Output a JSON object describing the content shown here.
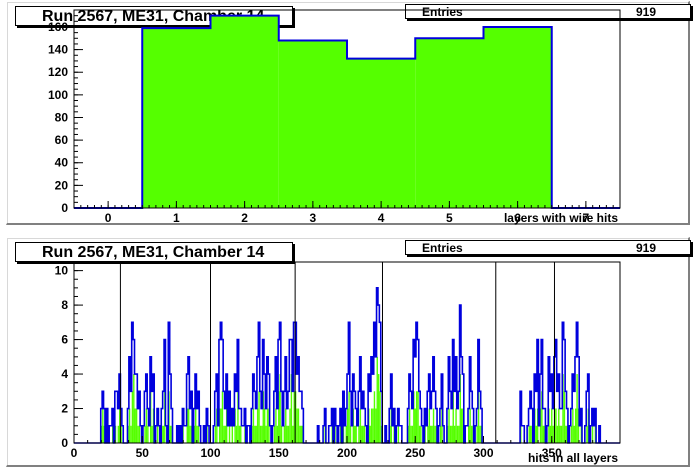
{
  "colors": {
    "fill": "#55ff00",
    "line": "#0000dd",
    "frame": "#000000"
  },
  "chart_data": [
    {
      "type": "bar",
      "title": "Run 2567, ME31, Chamber 14",
      "stats": {
        "label": "Entries",
        "value": "919"
      },
      "xlabel": "layers with wire hits",
      "ylabel": "",
      "xlim": [
        -0.5,
        7.5
      ],
      "ylim": [
        0,
        175
      ],
      "xticks": [
        0,
        1,
        2,
        3,
        4,
        5,
        6,
        7
      ],
      "yticks": [
        0,
        20,
        40,
        60,
        80,
        100,
        120,
        140,
        160
      ],
      "categories": [
        "0",
        "1",
        "2",
        "3",
        "4",
        "5",
        "6",
        "7"
      ],
      "values": [
        0,
        159,
        170,
        148,
        132,
        150,
        160,
        0
      ]
    },
    {
      "type": "bar",
      "title": "Run 2567, ME31, Chamber 14",
      "stats": {
        "label": "Entries",
        "value": "919"
      },
      "xlabel": "hits in all layers",
      "ylabel": "",
      "xlim": [
        0,
        400
      ],
      "ylim": [
        0,
        10.5
      ],
      "xticks": [
        0,
        50,
        100,
        150,
        200,
        250,
        300,
        350
      ],
      "yticks": [
        0,
        2,
        4,
        6,
        8,
        10
      ],
      "vlines": [
        34,
        100,
        162,
        226,
        309,
        352
      ],
      "green_values": [
        0,
        0,
        0,
        0,
        0,
        0,
        0,
        0,
        0,
        0,
        0,
        0,
        0,
        0,
        0,
        0,
        0,
        0,
        0,
        1,
        2,
        1,
        0,
        1,
        0,
        0,
        0,
        1,
        0,
        1,
        0,
        1,
        2,
        1,
        0,
        0,
        0,
        0,
        1,
        2,
        1,
        3,
        4,
        2,
        2,
        1,
        1,
        0,
        0,
        0,
        1,
        2,
        1,
        0,
        3,
        1,
        2,
        0,
        0,
        1,
        0,
        0,
        1,
        1,
        3,
        0,
        0,
        3,
        1,
        1,
        0,
        0,
        0,
        0,
        0,
        0,
        0,
        1,
        0,
        0,
        2,
        2,
        1,
        1,
        0,
        1,
        2,
        1,
        1,
        0,
        0,
        0,
        0,
        0,
        1,
        0,
        0,
        0,
        0,
        0,
        1,
        2,
        0,
        2,
        2,
        3,
        1,
        1,
        2,
        0,
        1,
        0,
        1,
        0,
        2,
        1,
        3,
        1,
        1,
        0,
        0,
        1,
        0,
        0,
        0,
        0,
        1,
        2,
        1,
        1,
        2,
        3,
        1,
        1,
        3,
        2,
        1,
        2,
        2,
        0,
        0,
        0,
        1,
        2,
        1,
        3,
        4,
        1,
        0,
        1,
        2,
        1,
        1,
        2,
        4,
        1,
        3,
        3,
        2,
        2,
        1,
        1,
        1,
        0,
        0,
        0,
        0,
        0,
        0,
        0,
        0,
        0,
        0,
        0,
        0,
        0,
        0,
        0,
        1,
        0,
        0,
        0,
        0,
        1,
        0,
        1,
        0,
        0,
        0,
        1,
        0,
        1,
        0,
        1,
        2,
        3,
        1,
        0,
        2,
        1,
        1,
        0,
        1,
        2,
        1,
        1,
        1,
        0,
        0,
        2,
        1,
        2,
        2,
        3,
        2,
        5,
        4,
        3,
        1,
        0,
        0,
        0,
        0,
        0,
        1,
        2,
        0,
        1,
        0,
        0,
        1,
        0,
        0,
        0,
        0,
        0,
        0,
        1,
        2,
        1,
        1,
        3,
        2,
        3,
        3,
        1,
        1,
        0,
        0,
        1,
        0,
        1,
        2,
        1,
        1,
        2,
        1,
        1,
        0,
        0,
        1,
        2,
        0,
        0,
        0,
        1,
        2,
        1,
        1,
        3,
        1,
        2,
        1,
        1,
        4,
        2,
        2,
        0,
        0,
        0,
        1,
        2,
        1,
        1,
        0,
        0,
        1,
        3,
        1,
        1,
        0,
        0,
        0,
        0,
        0,
        0,
        0,
        0,
        0,
        0,
        0,
        0,
        0,
        0,
        0,
        0,
        0,
        0,
        0,
        0,
        0,
        0,
        0,
        0,
        0,
        0,
        0,
        1,
        0,
        0,
        0,
        0,
        0,
        1,
        1,
        1,
        0,
        2,
        1,
        2,
        0,
        2,
        3,
        1,
        1,
        0,
        0,
        2,
        1,
        2,
        1,
        2,
        2,
        1,
        2,
        1,
        1,
        4,
        3,
        1,
        1,
        0,
        0,
        1,
        2,
        1,
        2,
        4,
        2,
        0,
        1,
        0,
        0,
        0,
        1,
        2,
        0,
        0,
        1,
        0,
        1,
        0,
        0,
        0,
        0,
        0,
        0,
        0,
        0,
        0,
        0,
        0,
        0,
        0,
        0,
        0,
        0,
        0
      ],
      "blue_values": [
        0,
        0,
        0,
        0,
        0,
        0,
        0,
        0,
        0,
        0,
        0,
        0,
        0,
        0,
        0,
        0,
        0,
        0,
        0,
        2,
        3,
        2,
        0,
        2,
        0,
        1,
        1,
        2,
        0,
        3,
        3,
        2,
        4,
        2,
        1,
        0,
        0,
        0,
        2,
        5,
        3,
        7,
        6,
        4,
        4,
        2,
        3,
        1,
        0,
        1,
        3,
        4,
        2,
        1,
        5,
        3,
        4,
        0,
        1,
        2,
        1,
        0,
        2,
        3,
        6,
        1,
        0,
        7,
        4,
        2,
        0,
        0,
        0,
        1,
        0,
        1,
        0,
        2,
        1,
        1,
        4,
        5,
        2,
        3,
        0,
        2,
        4,
        2,
        3,
        1,
        0,
        0,
        1,
        0,
        2,
        1,
        0,
        0,
        0,
        1,
        3,
        4,
        1,
        6,
        7,
        6,
        3,
        2,
        4,
        1,
        3,
        1,
        2,
        1,
        4,
        3,
        6,
        2,
        2,
        1,
        1,
        2,
        0,
        1,
        1,
        0,
        2,
        4,
        3,
        2,
        5,
        7,
        3,
        2,
        6,
        4,
        2,
        5,
        4,
        1,
        0,
        1,
        3,
        5,
        2,
        6,
        7,
        3,
        1,
        3,
        5,
        2,
        3,
        6,
        6,
        3,
        7,
        7,
        4,
        5,
        3,
        3,
        2,
        0,
        0,
        0,
        0,
        0,
        0,
        0,
        0,
        0,
        0,
        1,
        0,
        0,
        0,
        1,
        2,
        0,
        0,
        1,
        1,
        2,
        0,
        2,
        1,
        0,
        1,
        2,
        0,
        3,
        1,
        2,
        4,
        7,
        3,
        1,
        4,
        3,
        2,
        1,
        3,
        5,
        2,
        3,
        2,
        1,
        0,
        4,
        3,
        5,
        4,
        7,
        5,
        9,
        8,
        7,
        3,
        0,
        0,
        1,
        0,
        0,
        2,
        4,
        1,
        2,
        0,
        1,
        2,
        1,
        1,
        0,
        0,
        0,
        0,
        2,
        4,
        3,
        2,
        6,
        5,
        7,
        6,
        3,
        2,
        1,
        0,
        2,
        1,
        3,
        4,
        2,
        3,
        5,
        3,
        2,
        0,
        1,
        2,
        4,
        1,
        0,
        0,
        2,
        5,
        3,
        2,
        6,
        3,
        5,
        2,
        3,
        8,
        5,
        4,
        0,
        1,
        1,
        2,
        5,
        3,
        2,
        0,
        1,
        2,
        6,
        3,
        2,
        0,
        0,
        0,
        0,
        0,
        0,
        0,
        0,
        0,
        0,
        0,
        0,
        0,
        0,
        0,
        0,
        0,
        0,
        0,
        0,
        0,
        0,
        0,
        0,
        0,
        0,
        0,
        3,
        1,
        1,
        0,
        0,
        1,
        2,
        3,
        2,
        0,
        4,
        3,
        6,
        1,
        4,
        6,
        2,
        2,
        0,
        1,
        5,
        3,
        4,
        2,
        5,
        6,
        3,
        4,
        2,
        2,
        7,
        6,
        3,
        2,
        0,
        1,
        2,
        4,
        3,
        5,
        7,
        5,
        1,
        2,
        0,
        0,
        1,
        3,
        4,
        0,
        1,
        2,
        1,
        2,
        0,
        0,
        1,
        0,
        0,
        0,
        0,
        0,
        0,
        0,
        0,
        0,
        0,
        0,
        0,
        0,
        0
      ]
    }
  ]
}
